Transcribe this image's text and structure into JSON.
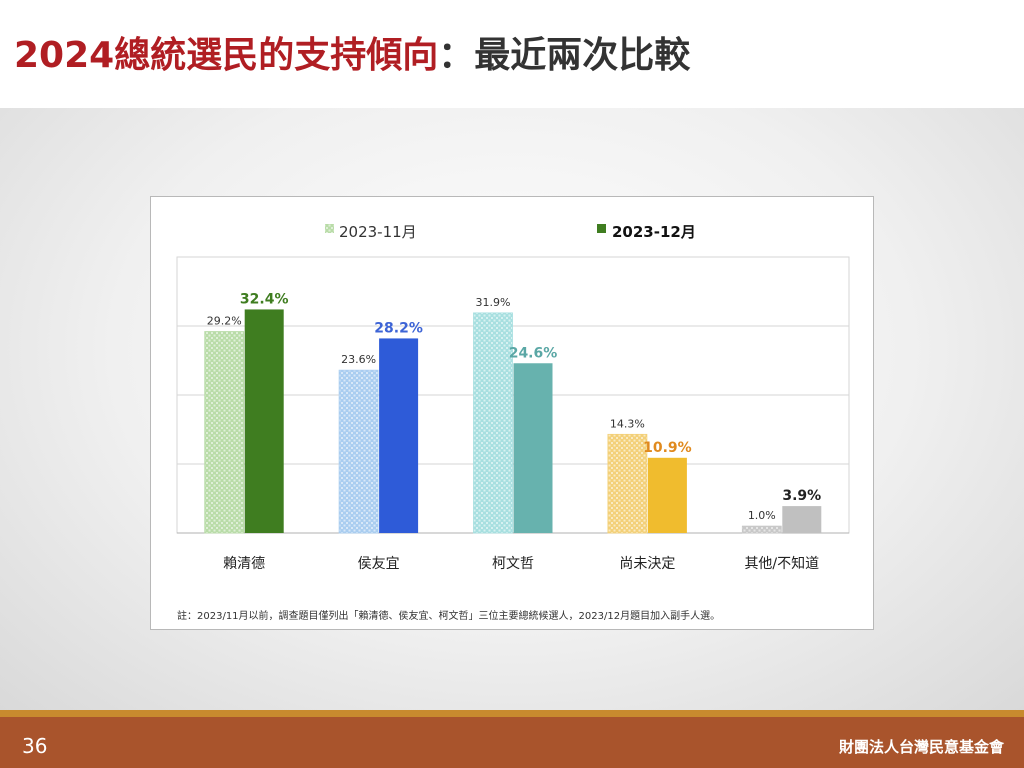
{
  "slide": {
    "title_red": "2024總統選民的支持傾向",
    "title_dark": "：最近兩次比較",
    "page_number": "36",
    "organization": "財團法人台灣民意基金會"
  },
  "chart_data": {
    "type": "bar",
    "categories": [
      "賴清德",
      "侯友宜",
      "柯文哲",
      "尚未決定",
      "其他/不知道"
    ],
    "series": [
      {
        "name": "2023-11月",
        "values": [
          29.2,
          23.6,
          31.9,
          14.3,
          1.0
        ],
        "labels": [
          "29.2%",
          "23.6%",
          "31.9%",
          "14.3%",
          "1.0%"
        ]
      },
      {
        "name": "2023-12月",
        "values": [
          32.4,
          28.2,
          24.6,
          10.9,
          3.9
        ],
        "labels": [
          "32.4%",
          "28.2%",
          "24.6%",
          "10.9%",
          "3.9%"
        ]
      }
    ],
    "colors": {
      "nov": [
        "#b9dca8",
        "#a9cdf0",
        "#a7dfe0",
        "#f3d078",
        "#c8c8c8"
      ],
      "dec": [
        "#3f7d20",
        "#2e5bd8",
        "#67b2ae",
        "#f0bc2e",
        "#c0c0c0"
      ],
      "dec_label": [
        "#3f7d20",
        "#3d64d6",
        "#5aa7a5",
        "#e08a1e",
        "#222222"
      ]
    },
    "ylim": [
      0,
      40
    ],
    "grid": true,
    "legend_position": "top",
    "note": "註：2023/11月以前，調查題目僅列出「賴清德、侯友宜、柯文哲」三位主要總統候選人，2023/12月題目加入副手人選。"
  }
}
